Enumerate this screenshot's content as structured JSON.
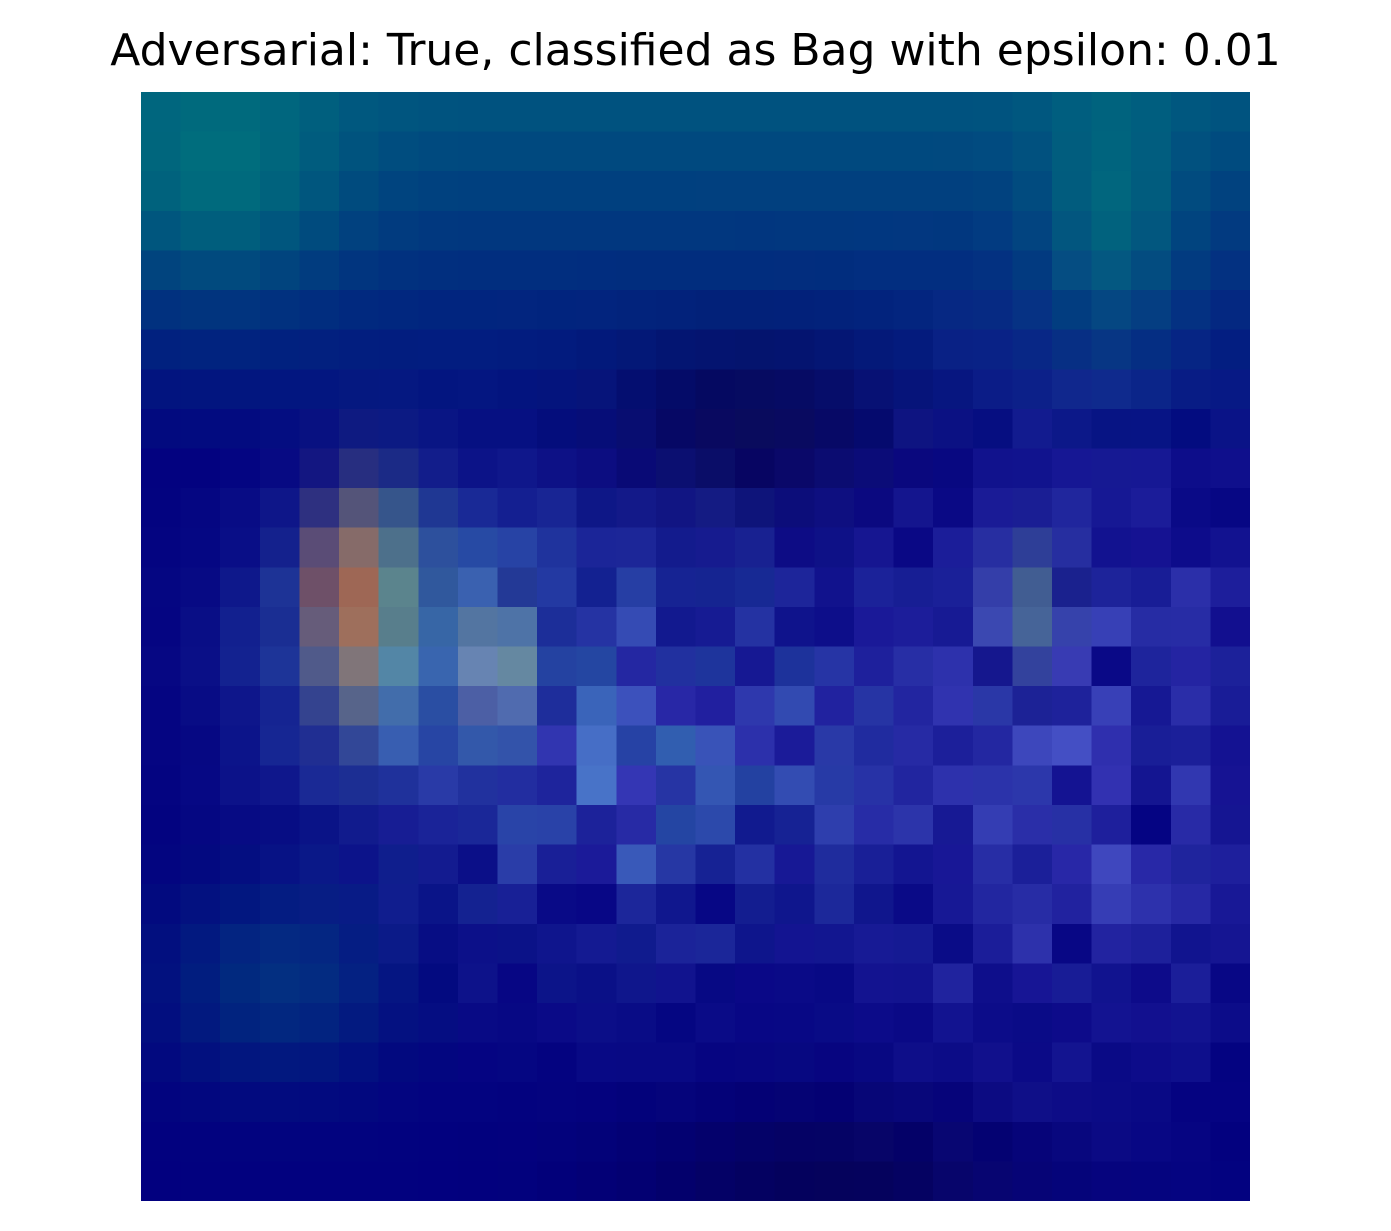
{
  "figure": {
    "title": "Adversarial: True, classified as Bag with epsilon: 0.01"
  },
  "image": {
    "grid_size": 28,
    "palette": {
      "deep_navy": "#04004a",
      "navy": "#02007f",
      "blue": "#0d2a8e",
      "teal_blue": "#00527f",
      "teal": "#00807c",
      "cyan": "#70eaf2",
      "light_blue": "#7ea6ff",
      "violet": "#5b55dc",
      "green": "#6bb27a",
      "yellow": "#efe070",
      "orange": "#cd713c",
      "red": "#9a4542"
    }
  }
}
